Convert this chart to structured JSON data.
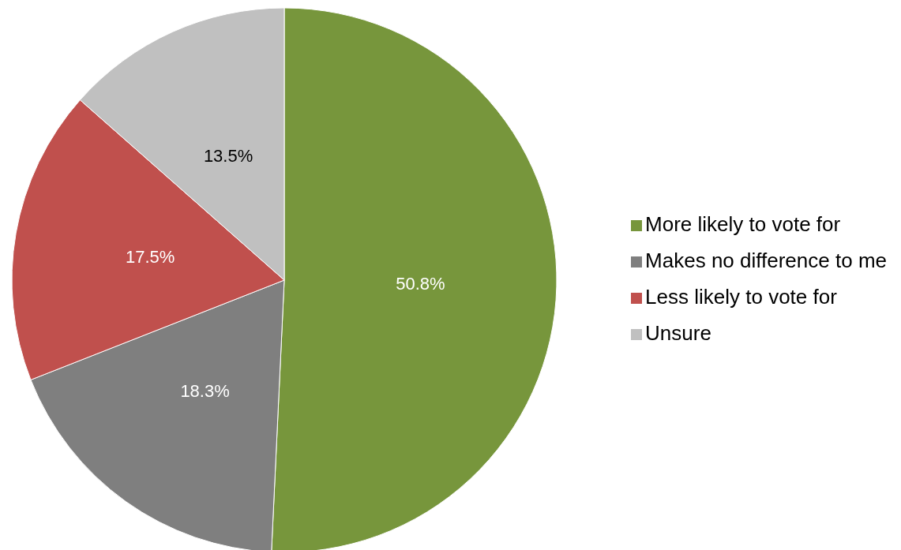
{
  "chart_data": {
    "type": "pie",
    "categories": [
      "More likely to vote for",
      "Makes no difference to me",
      "Less likely to vote for",
      "Unsure"
    ],
    "values": [
      50.8,
      18.3,
      17.5,
      13.5
    ],
    "colors": [
      "#77963c",
      "#7f7f7f",
      "#c0504d",
      "#c0c0c0"
    ],
    "value_labels": [
      "50.8%",
      "18.3%",
      "17.5%",
      "13.5%"
    ],
    "legend": "right"
  }
}
